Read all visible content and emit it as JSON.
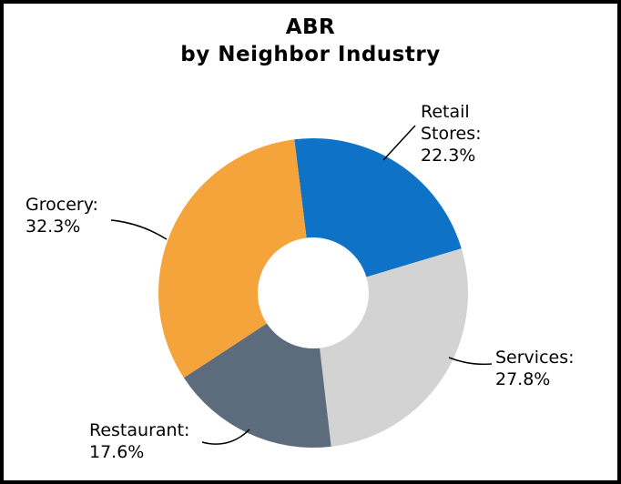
{
  "chart_data": {
    "type": "pie",
    "subtype": "donut",
    "title": "ABR\nby Neighbor Industry",
    "categories": [
      "Retail Stores",
      "Services",
      "Restaurant",
      "Grocery"
    ],
    "values": [
      22.3,
      27.8,
      17.6,
      32.3
    ],
    "series": [
      {
        "label": "Retail Stores",
        "value": 22.3,
        "color": "#0E72C6",
        "callout": "Retail\nStores:\n22.3%"
      },
      {
        "label": "Services",
        "value": 27.8,
        "color": "#D3D3D3",
        "callout": "Services:\n27.8%"
      },
      {
        "label": "Restaurant",
        "value": 17.6,
        "color": "#5D6C7C",
        "callout": "Restaurant:\n17.6%"
      },
      {
        "label": "Grocery",
        "value": 32.3,
        "color": "#F5A43C",
        "callout": "Grocery:\n32.3%"
      }
    ],
    "start_angle_deg": -7,
    "donut_hole_ratio": 0.36,
    "legend": "none",
    "label_style": "callouts-with-leader-lines",
    "background_color": "#FFFFFF",
    "border_color": "#000000"
  }
}
